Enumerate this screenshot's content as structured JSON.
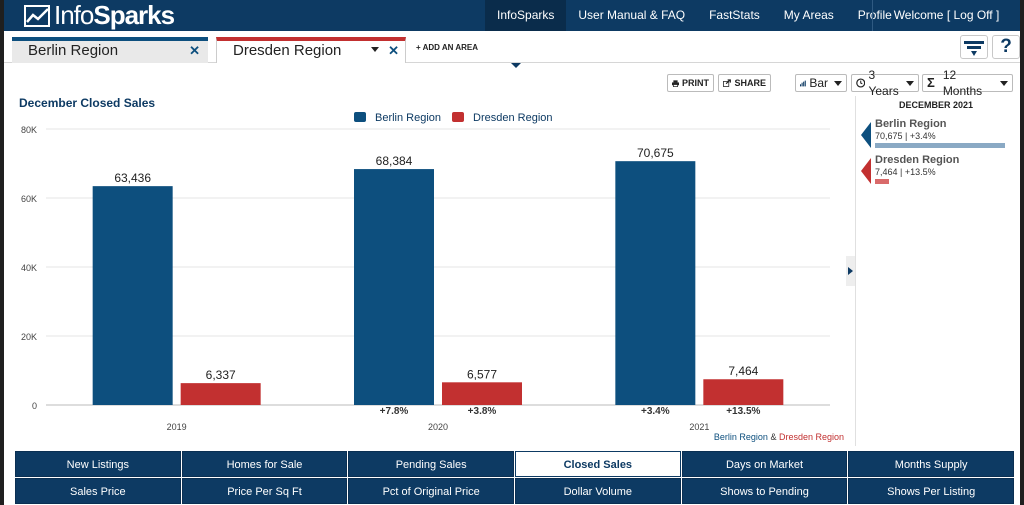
{
  "brand": {
    "logo_text_light": "Info",
    "logo_text_bold": "Sparks"
  },
  "nav": {
    "links": [
      {
        "label": "InfoSparks",
        "active": true
      },
      {
        "label": "User Manual & FAQ",
        "active": false
      },
      {
        "label": "FastStats",
        "active": false
      },
      {
        "label": "My Areas",
        "active": false
      },
      {
        "label": "Profile",
        "active": false
      }
    ],
    "welcome": "Welcome [ Log Off ]"
  },
  "areas": {
    "tabs": [
      {
        "label": "Berlin Region",
        "color": "#0d4f7e"
      },
      {
        "label": "Dresden Region",
        "color": "#c23030"
      }
    ],
    "close_glyph": "✕",
    "add_area": "+ ADD AN AREA",
    "help_glyph": "?"
  },
  "toolbar": {
    "print": "PRINT",
    "share": "SHARE",
    "chart_type": "Bar",
    "range": "3 Years",
    "sigma": "Σ",
    "period": "12 Months"
  },
  "chart_data": {
    "type": "bar",
    "title": "December Closed Sales",
    "categories": [
      "2019",
      "2020",
      "2021"
    ],
    "series": [
      {
        "name": "Berlin Region",
        "color": "#0d4f7e",
        "values": [
          63436,
          68384,
          70675
        ],
        "labels": [
          "63,436",
          "68,384",
          "70,675"
        ]
      },
      {
        "name": "Dresden Region",
        "color": "#c23030",
        "values": [
          6337,
          6577,
          7464
        ],
        "labels": [
          "6,337",
          "6,577",
          "7,464"
        ]
      }
    ],
    "ylim": [
      0,
      80000
    ],
    "yticks": [
      0,
      20000,
      40000,
      60000,
      80000
    ],
    "ytick_labels": [
      "0",
      "20K",
      "40K",
      "60K",
      "80K"
    ],
    "change_labels": [
      {
        "category": "2020",
        "series": "Berlin Region",
        "text": "+7.8%"
      },
      {
        "category": "2020",
        "series": "Dresden Region",
        "text": "+3.8%"
      },
      {
        "category": "2021",
        "series": "Berlin Region",
        "text": "+3.4%"
      },
      {
        "category": "2021",
        "series": "Dresden Region",
        "text": "+13.5%"
      }
    ],
    "legend": "top",
    "grid": true,
    "footer_left": "Berlin Region",
    "footer_amp": " & ",
    "footer_right": "Dresden Region"
  },
  "side_panel": {
    "title": "DECEMBER 2021",
    "items": [
      {
        "name": "Berlin Region",
        "value": "70,675 | +3.4%",
        "color": "#0d4f7e",
        "bar_color": "#8aa9c4",
        "share": 1.0
      },
      {
        "name": "Dresden Region",
        "value": "7,464 | +13.5%",
        "color": "#c23030",
        "bar_color": "#d96a6a",
        "share": 0.1056
      }
    ]
  },
  "metrics": [
    {
      "label": "New Listings",
      "active": false
    },
    {
      "label": "Homes for Sale",
      "active": false
    },
    {
      "label": "Pending Sales",
      "active": false
    },
    {
      "label": "Closed Sales",
      "active": true
    },
    {
      "label": "Days on Market",
      "active": false
    },
    {
      "label": "Months Supply",
      "active": false
    },
    {
      "label": "Sales Price",
      "active": false
    },
    {
      "label": "Price Per Sq Ft",
      "active": false
    },
    {
      "label": "Pct of Original Price",
      "active": false
    },
    {
      "label": "Dollar Volume",
      "active": false
    },
    {
      "label": "Shows to Pending",
      "active": false
    },
    {
      "label": "Shows Per Listing",
      "active": false
    }
  ]
}
